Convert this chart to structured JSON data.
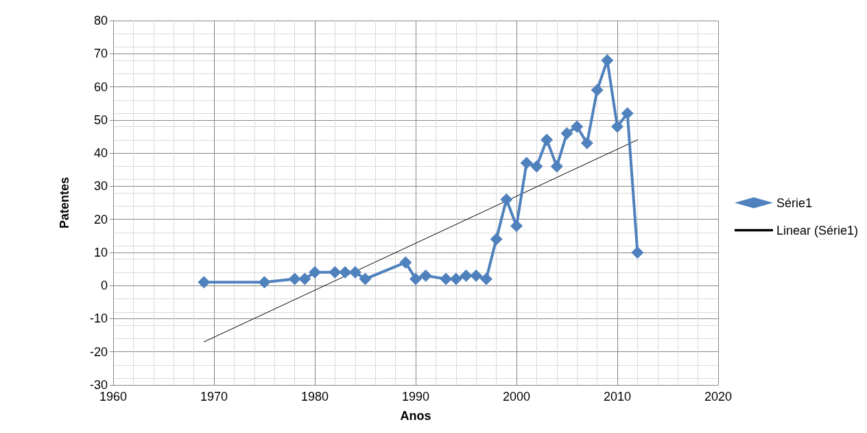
{
  "chart_data": {
    "type": "line",
    "xlabel": "Anos",
    "ylabel": "Patentes",
    "xlim": [
      1960,
      2020
    ],
    "xticks": [
      1960,
      1970,
      1980,
      1990,
      2000,
      2010,
      2020
    ],
    "ylim": [
      -30,
      80
    ],
    "yticks": [
      -30,
      -20,
      -10,
      0,
      10,
      20,
      30,
      40,
      50,
      60,
      70,
      80
    ],
    "grid": true,
    "legend": "right",
    "series": [
      {
        "name": "Série1",
        "color": "#4f81bd",
        "marker": "diamond",
        "line_style": "solid",
        "x": [
          1969,
          1975,
          1978,
          1979,
          1980,
          1982,
          1983,
          1984,
          1985,
          1989,
          1990,
          1991,
          1993,
          1994,
          1995,
          1996,
          1997,
          1998,
          1999,
          2000,
          2001,
          2002,
          2003,
          2004,
          2005,
          2006,
          2007,
          2008,
          2009,
          2010,
          2011,
          2012
        ],
        "values": [
          1,
          1,
          2,
          2,
          4,
          4,
          4,
          4,
          2,
          7,
          2,
          3,
          2,
          2,
          3,
          3,
          2,
          14,
          26,
          18,
          37,
          36,
          44,
          36,
          46,
          48,
          43,
          59,
          68,
          48,
          52,
          10
        ]
      },
      {
        "name": "Linear (Série1)",
        "color": "#000000",
        "marker": "none",
        "line_style": "solid",
        "x": [
          1969,
          2012
        ],
        "values": [
          -17,
          44
        ]
      }
    ]
  }
}
